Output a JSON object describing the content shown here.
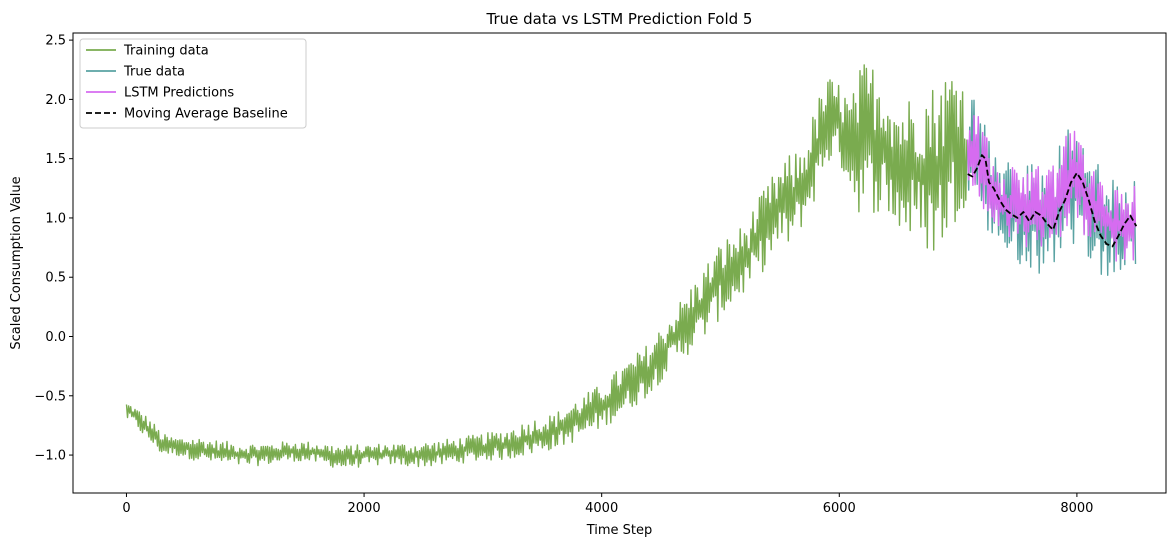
{
  "chart_data": {
    "type": "line",
    "title": "True data vs LSTM Prediction Fold 5",
    "xlabel": "Time Step",
    "ylabel": "Scaled Consumption Value",
    "xlim": [
      -450,
      8750
    ],
    "ylim": [
      -1.32,
      2.56
    ],
    "x_ticks": [
      0,
      2000,
      4000,
      6000,
      8000
    ],
    "x_tick_labels": [
      "0",
      "2000",
      "4000",
      "6000",
      "8000"
    ],
    "y_ticks": [
      -1.0,
      -0.5,
      0.0,
      0.5,
      1.0,
      1.5,
      2.0,
      2.5
    ],
    "y_tick_labels": [
      "−1.0",
      "−0.5",
      "0.0",
      "0.5",
      "1.0",
      "1.5",
      "2.0",
      "2.5"
    ],
    "grid": false,
    "legend_position": "top-left",
    "series": [
      {
        "name": "Training data",
        "color": "#7aab4f",
        "style": "solid",
        "band": true,
        "x_start": 0,
        "x_end": 7080,
        "points": [
          [
            0,
            -0.57
          ],
          [
            50,
            -0.64
          ],
          [
            150,
            -0.74
          ],
          [
            250,
            -0.85
          ],
          [
            300,
            -0.91
          ],
          [
            400,
            -0.93
          ],
          [
            600,
            -0.96
          ],
          [
            800,
            -0.99
          ],
          [
            1000,
            -1.01
          ],
          [
            1200,
            -1.0
          ],
          [
            1400,
            -0.98
          ],
          [
            1600,
            -0.99
          ],
          [
            1800,
            -1.02
          ],
          [
            2000,
            -1.01
          ],
          [
            2200,
            -1.0
          ],
          [
            2400,
            -1.0
          ],
          [
            2600,
            -1.0
          ],
          [
            2800,
            -0.98
          ],
          [
            3000,
            -0.95
          ],
          [
            3200,
            -0.93
          ],
          [
            3400,
            -0.87
          ],
          [
            3600,
            -0.82
          ],
          [
            3800,
            -0.72
          ],
          [
            4000,
            -0.6
          ],
          [
            4200,
            -0.45
          ],
          [
            4400,
            -0.28
          ],
          [
            4600,
            0.0
          ],
          [
            4800,
            0.2
          ],
          [
            5000,
            0.45
          ],
          [
            5200,
            0.6
          ],
          [
            5400,
            0.85
          ],
          [
            5500,
            1.05
          ],
          [
            5600,
            1.15
          ],
          [
            5700,
            1.25
          ],
          [
            5800,
            1.55
          ],
          [
            5900,
            1.75
          ],
          [
            6000,
            1.8
          ],
          [
            6100,
            1.65
          ],
          [
            6200,
            1.45
          ],
          [
            6300,
            1.5
          ],
          [
            6400,
            1.45
          ],
          [
            6500,
            1.3
          ],
          [
            6600,
            1.25
          ],
          [
            6700,
            1.25
          ],
          [
            6800,
            1.2
          ],
          [
            6900,
            1.3
          ],
          [
            7000,
            1.4
          ],
          [
            7080,
            1.45
          ]
        ],
        "lower": [
          [
            0,
            -0.7
          ],
          [
            50,
            -0.72
          ],
          [
            150,
            -0.85
          ],
          [
            250,
            -0.95
          ],
          [
            300,
            -1.0
          ],
          [
            400,
            -1.0
          ],
          [
            600,
            -1.05
          ],
          [
            800,
            -1.08
          ],
          [
            1000,
            -1.1
          ],
          [
            1200,
            -1.08
          ],
          [
            1400,
            -1.05
          ],
          [
            1600,
            -1.07
          ],
          [
            1800,
            -1.12
          ],
          [
            2000,
            -1.1
          ],
          [
            2200,
            -1.08
          ],
          [
            2400,
            -1.1
          ],
          [
            2600,
            -1.1
          ],
          [
            2800,
            -1.07
          ],
          [
            3000,
            -1.05
          ],
          [
            3200,
            -1.04
          ],
          [
            3400,
            -1.0
          ],
          [
            3600,
            -0.95
          ],
          [
            3800,
            -0.88
          ],
          [
            4000,
            -0.78
          ],
          [
            4200,
            -0.65
          ],
          [
            4400,
            -0.5
          ],
          [
            4600,
            -0.25
          ],
          [
            4800,
            -0.1
          ],
          [
            5000,
            0.15
          ],
          [
            5200,
            0.35
          ],
          [
            5400,
            0.6
          ],
          [
            5500,
            0.75
          ],
          [
            5600,
            0.75
          ],
          [
            5700,
            0.95
          ],
          [
            5800,
            1.15
          ],
          [
            5900,
            1.45
          ],
          [
            6000,
            1.45
          ],
          [
            6100,
            1.2
          ],
          [
            6200,
            0.95
          ],
          [
            6300,
            1.05
          ],
          [
            6400,
            1.0
          ],
          [
            6500,
            0.85
          ],
          [
            6600,
            0.8
          ],
          [
            6700,
            0.75
          ],
          [
            6800,
            0.65
          ],
          [
            6900,
            0.8
          ],
          [
            7000,
            1.0
          ],
          [
            7080,
            1.15
          ]
        ],
        "upper": [
          [
            0,
            -0.55
          ],
          [
            50,
            -0.58
          ],
          [
            150,
            -0.65
          ],
          [
            250,
            -0.75
          ],
          [
            300,
            -0.82
          ],
          [
            400,
            -0.85
          ],
          [
            600,
            -0.85
          ],
          [
            800,
            -0.88
          ],
          [
            1000,
            -0.9
          ],
          [
            1200,
            -0.9
          ],
          [
            1400,
            -0.88
          ],
          [
            1600,
            -0.89
          ],
          [
            1800,
            -0.92
          ],
          [
            2000,
            -0.91
          ],
          [
            2200,
            -0.9
          ],
          [
            2400,
            -0.9
          ],
          [
            2600,
            -0.88
          ],
          [
            2800,
            -0.85
          ],
          [
            3000,
            -0.82
          ],
          [
            3200,
            -0.78
          ],
          [
            3400,
            -0.7
          ],
          [
            3600,
            -0.65
          ],
          [
            3800,
            -0.52
          ],
          [
            4000,
            -0.4
          ],
          [
            4200,
            -0.22
          ],
          [
            4400,
            -0.05
          ],
          [
            4600,
            0.22
          ],
          [
            4800,
            0.5
          ],
          [
            5000,
            0.8
          ],
          [
            5200,
            0.95
          ],
          [
            5400,
            1.3
          ],
          [
            5500,
            1.45
          ],
          [
            5600,
            1.55
          ],
          [
            5700,
            1.6
          ],
          [
            5800,
            1.95
          ],
          [
            5900,
            2.2
          ],
          [
            6000,
            2.15
          ],
          [
            6100,
            2.0
          ],
          [
            6200,
            2.35
          ],
          [
            6300,
            2.3
          ],
          [
            6400,
            2.2
          ],
          [
            6500,
            2.0
          ],
          [
            6600,
            2.05
          ],
          [
            6700,
            2.1
          ],
          [
            6800,
            2.15
          ],
          [
            6900,
            2.25
          ],
          [
            7000,
            2.38
          ],
          [
            7080,
            2.0
          ]
        ]
      },
      {
        "name": "True data",
        "color": "#5aa3a3",
        "style": "solid",
        "band": true,
        "x_start": 7080,
        "x_end": 8500,
        "lower": [
          [
            7080,
            1.1
          ],
          [
            7200,
            0.95
          ],
          [
            7300,
            0.8
          ],
          [
            7400,
            0.65
          ],
          [
            7500,
            0.55
          ],
          [
            7600,
            0.55
          ],
          [
            7700,
            0.5
          ],
          [
            7800,
            0.6
          ],
          [
            7900,
            0.7
          ],
          [
            8000,
            0.8
          ],
          [
            8100,
            0.65
          ],
          [
            8200,
            0.5
          ],
          [
            8300,
            0.45
          ],
          [
            8400,
            0.5
          ],
          [
            8500,
            0.6
          ]
        ],
        "upper": [
          [
            7080,
            1.95
          ],
          [
            7150,
            2.05
          ],
          [
            7250,
            1.7
          ],
          [
            7350,
            1.5
          ],
          [
            7450,
            1.5
          ],
          [
            7550,
            1.45
          ],
          [
            7650,
            1.5
          ],
          [
            7750,
            1.45
          ],
          [
            7850,
            1.6
          ],
          [
            7950,
            1.85
          ],
          [
            8050,
            1.7
          ],
          [
            8150,
            1.5
          ],
          [
            8250,
            1.35
          ],
          [
            8350,
            1.3
          ],
          [
            8450,
            1.35
          ],
          [
            8500,
            1.3
          ]
        ]
      },
      {
        "name": "LSTM Predictions",
        "color": "#d66cf0",
        "style": "solid",
        "band": true,
        "x_start": 7080,
        "x_end": 8500,
        "lower": [
          [
            7080,
            1.2
          ],
          [
            7200,
            1.05
          ],
          [
            7300,
            0.9
          ],
          [
            7400,
            0.8
          ],
          [
            7500,
            0.75
          ],
          [
            7600,
            0.75
          ],
          [
            7700,
            0.7
          ],
          [
            7800,
            0.75
          ],
          [
            7900,
            0.85
          ],
          [
            8000,
            0.95
          ],
          [
            8100,
            0.8
          ],
          [
            8200,
            0.7
          ],
          [
            8300,
            0.6
          ],
          [
            8400,
            0.6
          ],
          [
            8500,
            0.65
          ]
        ],
        "upper": [
          [
            7080,
            1.85
          ],
          [
            7150,
            1.95
          ],
          [
            7250,
            1.65
          ],
          [
            7350,
            1.45
          ],
          [
            7450,
            1.45
          ],
          [
            7550,
            1.4
          ],
          [
            7650,
            1.45
          ],
          [
            7750,
            1.4
          ],
          [
            7850,
            1.55
          ],
          [
            7950,
            1.85
          ],
          [
            8050,
            1.65
          ],
          [
            8150,
            1.45
          ],
          [
            8250,
            1.3
          ],
          [
            8350,
            1.25
          ],
          [
            8450,
            1.3
          ],
          [
            8500,
            1.25
          ]
        ]
      },
      {
        "name": "Moving Average Baseline",
        "color": "#000000",
        "style": "dashed",
        "band": false,
        "points": [
          [
            7080,
            1.37
          ],
          [
            7120,
            1.35
          ],
          [
            7160,
            1.42
          ],
          [
            7200,
            1.53
          ],
          [
            7230,
            1.5
          ],
          [
            7260,
            1.3
          ],
          [
            7300,
            1.25
          ],
          [
            7350,
            1.15
          ],
          [
            7400,
            1.07
          ],
          [
            7450,
            1.03
          ],
          [
            7500,
            1.0
          ],
          [
            7550,
            1.05
          ],
          [
            7600,
            0.97
          ],
          [
            7650,
            1.05
          ],
          [
            7700,
            1.02
          ],
          [
            7750,
            0.95
          ],
          [
            7800,
            0.9
          ],
          [
            7850,
            1.05
          ],
          [
            7900,
            1.15
          ],
          [
            7950,
            1.3
          ],
          [
            8000,
            1.38
          ],
          [
            8050,
            1.3
          ],
          [
            8100,
            1.15
          ],
          [
            8150,
            0.97
          ],
          [
            8200,
            0.85
          ],
          [
            8250,
            0.78
          ],
          [
            8300,
            0.76
          ],
          [
            8350,
            0.85
          ],
          [
            8400,
            0.95
          ],
          [
            8450,
            1.02
          ],
          [
            8500,
            0.93
          ]
        ]
      }
    ]
  }
}
